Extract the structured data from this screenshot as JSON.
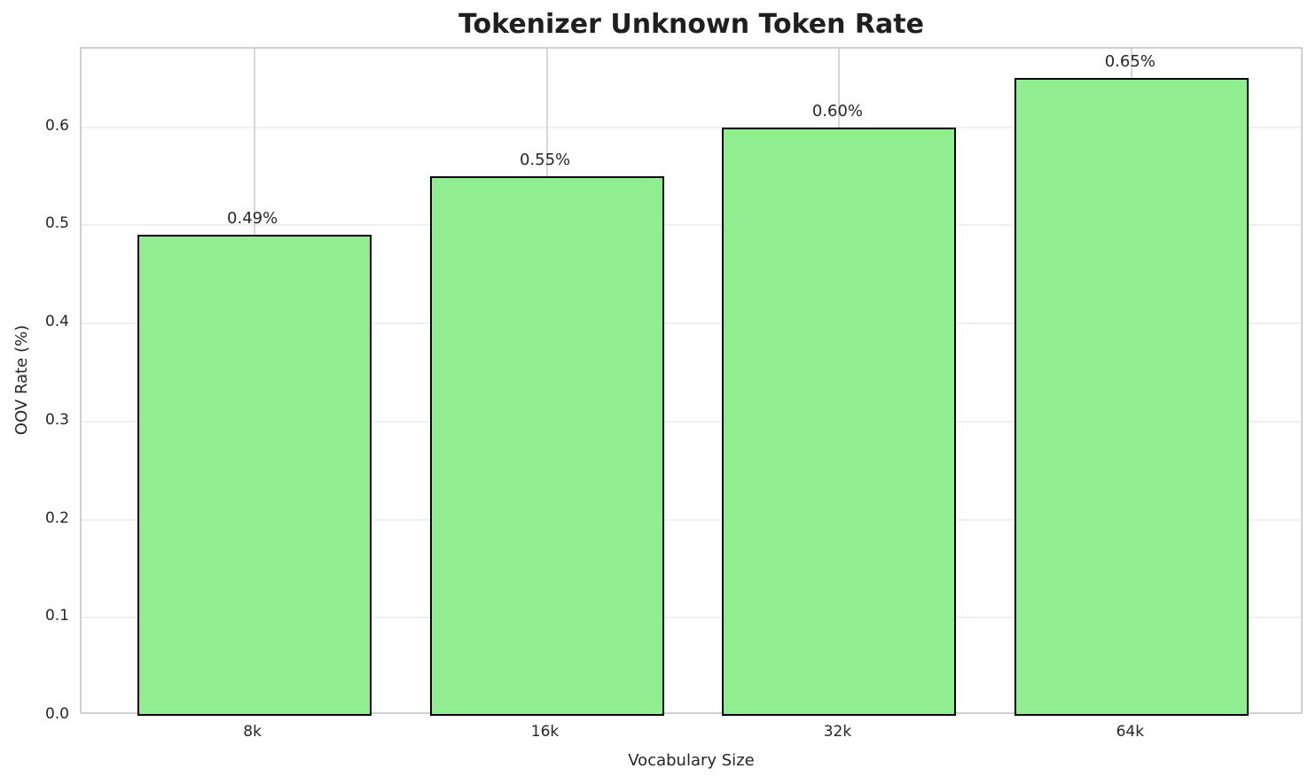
{
  "chart_data": {
    "type": "bar",
    "title": "Tokenizer Unknown Token Rate",
    "xlabel": "Vocabulary Size",
    "ylabel": "OOV Rate (%)",
    "categories": [
      "8k",
      "16k",
      "32k",
      "64k"
    ],
    "values": [
      0.49,
      0.55,
      0.6,
      0.65
    ],
    "bar_labels": [
      "0.49%",
      "0.55%",
      "0.60%",
      "0.65%"
    ],
    "yticks": {
      "values": [
        0.0,
        0.1,
        0.2,
        0.3,
        0.4,
        0.5,
        0.6
      ],
      "labels": [
        "0.0",
        "0.1",
        "0.2",
        "0.3",
        "0.4",
        "0.5",
        "0.6"
      ]
    },
    "ylim": [
      0,
      0.68
    ],
    "bar_rel_width": 0.8,
    "grid": true,
    "legend_position": "none",
    "colors": {
      "bar_fill": "#90EE90",
      "bar_edge": "#000000",
      "grid_horizontal": "#f0f0f0",
      "grid_vertical": "#d6d6d6",
      "spine": "#d0d0d0",
      "text": "#262626",
      "title": "#1f1f1f",
      "background": "#ffffff"
    }
  }
}
